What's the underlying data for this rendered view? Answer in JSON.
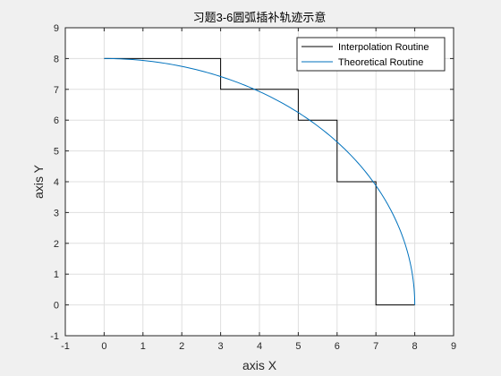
{
  "chart_data": {
    "type": "line",
    "title": "习题3-6圆弧插补轨迹示意",
    "xlabel": "axis X",
    "ylabel": "axis Y",
    "xlim": [
      -1,
      9
    ],
    "ylim": [
      -1,
      9
    ],
    "xticks": [
      -1,
      0,
      1,
      2,
      3,
      4,
      5,
      6,
      7,
      8,
      9
    ],
    "yticks": [
      -1,
      0,
      1,
      2,
      3,
      4,
      5,
      6,
      7,
      8,
      9
    ],
    "grid": true,
    "legend_position": "top-right",
    "series": [
      {
        "name": "Interpolation Routine",
        "color": "#000000",
        "style": "step",
        "points": [
          [
            0,
            8
          ],
          [
            3,
            8
          ],
          [
            3,
            7
          ],
          [
            5,
            7
          ],
          [
            5,
            6
          ],
          [
            6,
            6
          ],
          [
            6,
            4
          ],
          [
            7,
            4
          ],
          [
            7,
            0
          ],
          [
            8,
            0
          ]
        ]
      },
      {
        "name": "Theoretical Routine",
        "color": "#0072BD",
        "style": "curve",
        "circle": {
          "center_x": 0,
          "center_y": 0,
          "radius": 8,
          "from_deg": 90,
          "to_deg": 0
        }
      }
    ]
  }
}
